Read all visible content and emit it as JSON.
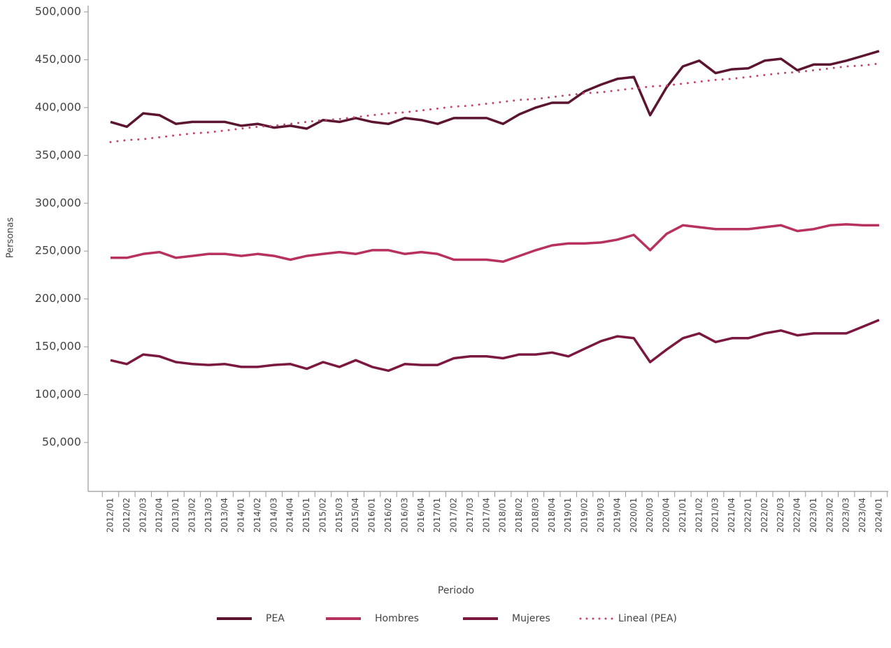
{
  "chart_data": {
    "type": "line",
    "x_label": "Periodo",
    "y_label": "Personas",
    "categories": [
      "2012/01",
      "2012/02",
      "2012/03",
      "2012/04",
      "2013/01",
      "2013/02",
      "2013/03",
      "2013/04",
      "2014/01",
      "2014/02",
      "2014/03",
      "2014/04",
      "2015/01",
      "2015/02",
      "2015/03",
      "2015/04",
      "2016/01",
      "2016/02",
      "2016/03",
      "2016/04",
      "2017/01",
      "2017/02",
      "2017/03",
      "2017/04",
      "2018/01",
      "2018/02",
      "2018/03",
      "2018/04",
      "2019/01",
      "2019/02",
      "2019/03",
      "2019/04",
      "2020/01",
      "2020/03",
      "2020/04",
      "2021/01",
      "2021/02",
      "2021/03",
      "2021/04",
      "2022/01",
      "2022/02",
      "2022/03",
      "2022/04",
      "2023/01",
      "2023/02",
      "2023/03",
      "2023/04",
      "2024/01"
    ],
    "series": [
      {
        "name": "PEA",
        "color": "#5c1530",
        "style": "solid",
        "values": [
          385000,
          380000,
          394000,
          392000,
          383000,
          385000,
          385000,
          385000,
          381000,
          383000,
          379000,
          381000,
          378000,
          387000,
          385000,
          389000,
          385000,
          383000,
          389000,
          387000,
          383000,
          389000,
          389000,
          389000,
          383000,
          393000,
          400000,
          405000,
          405000,
          417000,
          424000,
          430000,
          432000,
          392000,
          421000,
          443000,
          449000,
          436000,
          440000,
          441000,
          449000,
          451000,
          439000,
          445000,
          445000,
          449000,
          454000,
          459000
        ]
      },
      {
        "name": "Hombres",
        "color": "#b8325f",
        "style": "solid",
        "values": [
          243000,
          243000,
          247000,
          249000,
          243000,
          245000,
          247000,
          247000,
          245000,
          247000,
          245000,
          241000,
          245000,
          247000,
          249000,
          247000,
          251000,
          251000,
          247000,
          249000,
          247000,
          241000,
          241000,
          241000,
          239000,
          245000,
          251000,
          256000,
          258000,
          258000,
          259000,
          262000,
          267000,
          251000,
          268000,
          277000,
          275000,
          273000,
          273000,
          273000,
          275000,
          277000,
          271000,
          273000,
          277000,
          278000,
          277000,
          277000
        ]
      },
      {
        "name": "Mujeres",
        "color": "#7a1840",
        "style": "solid",
        "values": [
          136000,
          132000,
          142000,
          140000,
          134000,
          132000,
          131000,
          132000,
          129000,
          129000,
          131000,
          132000,
          127000,
          134000,
          129000,
          136000,
          129000,
          125000,
          132000,
          131000,
          131000,
          138000,
          140000,
          140000,
          138000,
          142000,
          142000,
          144000,
          140000,
          148000,
          156000,
          161000,
          159000,
          134000,
          147000,
          159000,
          164000,
          155000,
          159000,
          159000,
          164000,
          167000,
          162000,
          164000,
          164000,
          164000,
          171000,
          178000
        ]
      },
      {
        "name": "Lineal (PEA)",
        "color": "#c4456d",
        "style": "dotted",
        "values": [
          364000,
          366000,
          367000,
          369000,
          371000,
          373000,
          374000,
          376000,
          378000,
          380000,
          381000,
          383000,
          385000,
          387000,
          388000,
          390000,
          392000,
          394000,
          395000,
          397000,
          399000,
          401000,
          402000,
          404000,
          406000,
          408000,
          409000,
          411000,
          413000,
          415000,
          416000,
          418000,
          420000,
          422000,
          423000,
          425000,
          427000,
          429000,
          430000,
          432000,
          434000,
          436000,
          437000,
          439000,
          441000,
          443000,
          444000,
          446000
        ]
      }
    ],
    "ylim": [
      0,
      500000
    ],
    "yticks": [
      {
        "value": 50000,
        "label": "50,000"
      },
      {
        "value": 100000,
        "label": "100,000"
      },
      {
        "value": 150000,
        "label": "150,000"
      },
      {
        "value": 200000,
        "label": "200,000"
      },
      {
        "value": 250000,
        "label": "250,000"
      },
      {
        "value": 300000,
        "label": "300,000"
      },
      {
        "value": 350000,
        "label": "350,000"
      },
      {
        "value": 400000,
        "label": "400,000"
      },
      {
        "value": 450000,
        "label": "450,000"
      },
      {
        "value": 500000,
        "label": "500,000"
      }
    ],
    "grid": false,
    "legend": "bottom"
  }
}
